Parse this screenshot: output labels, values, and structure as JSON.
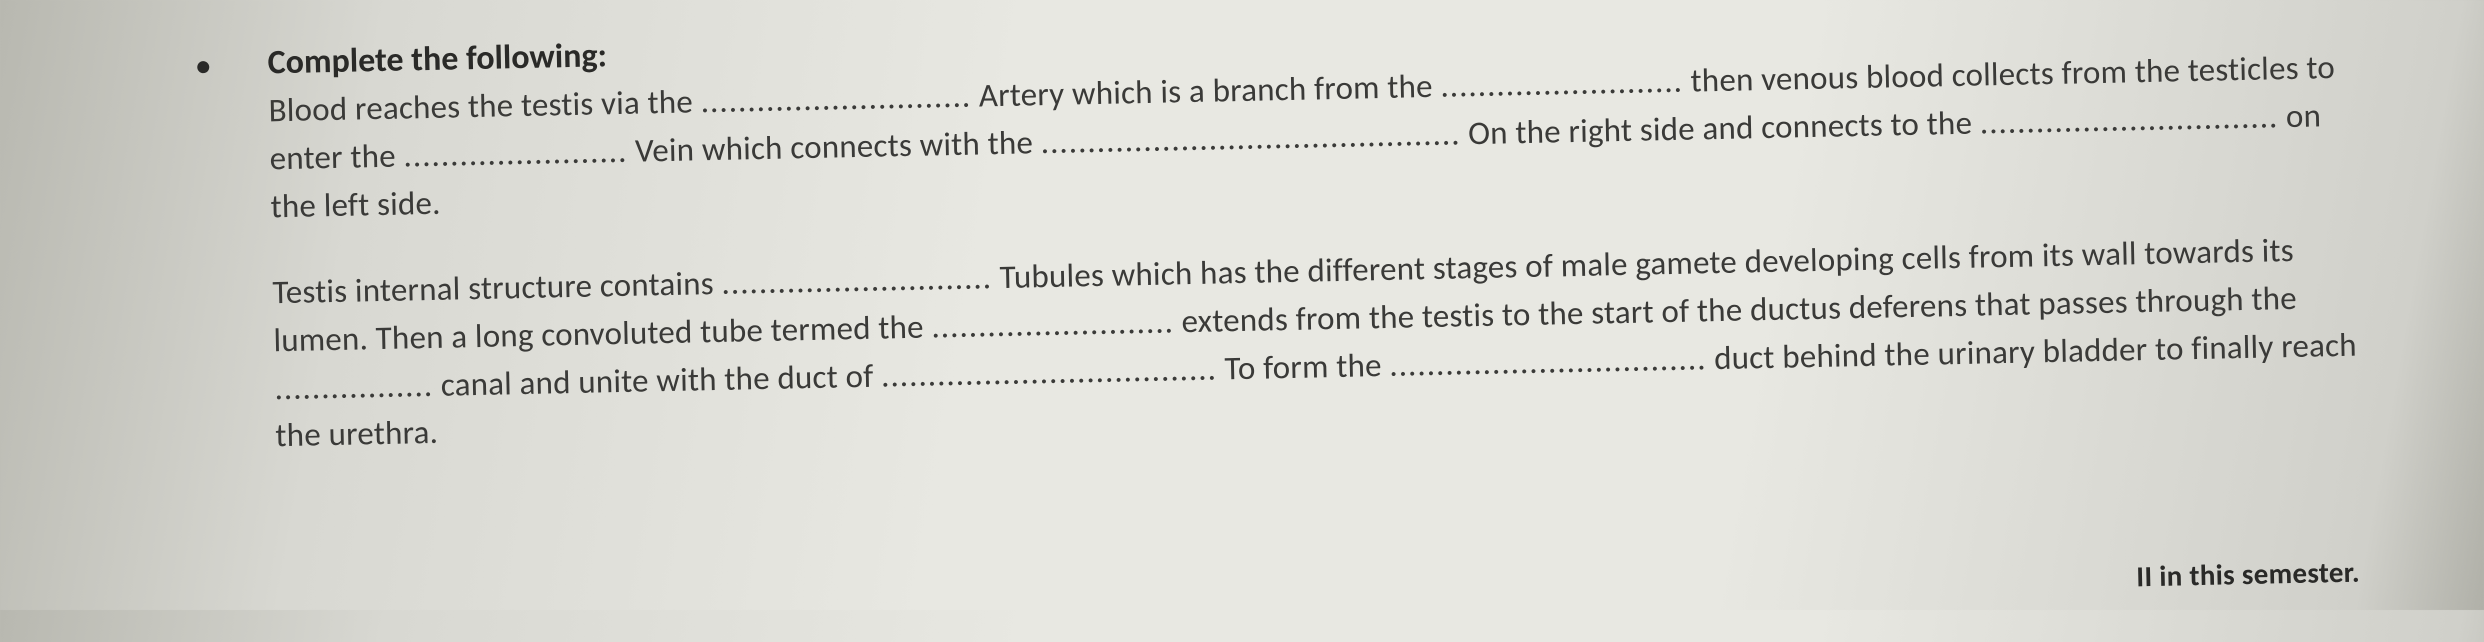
{
  "bullet": "•",
  "heading": "Complete the following:",
  "paragraph1": {
    "t1": "Blood reaches the testis via the ",
    "b1": ".............................",
    "t2": " Artery which is a branch from the ",
    "b2": "..........................",
    "t3": " then venous blood collects from the testicles to enter the ",
    "b3": "........................",
    "t4": " Vein which connects with the ",
    "b4": ".............................................",
    "t5": " On the right side and connects to the ",
    "b5": "................................",
    "t6": " on the left side."
  },
  "paragraph2": {
    "t1": "Testis internal structure contains ",
    "b1": ".............................",
    "t2": " Tubules which has the different stages of male gamete developing cells from its wall towards its lumen. Then a long convoluted tube termed the ",
    "b2": "..........................",
    "t3": " extends from the testis to the start of the ductus deferens that passes through the ",
    "b3": ".................",
    "t4": " canal and unite with the duct of ",
    "b4": "....................................",
    "t5": " To form the ",
    "b5": "..................................",
    "t6": " duct behind the urinary bladder to finally reach the urethra."
  },
  "footer_fragment": "II in this semester."
}
